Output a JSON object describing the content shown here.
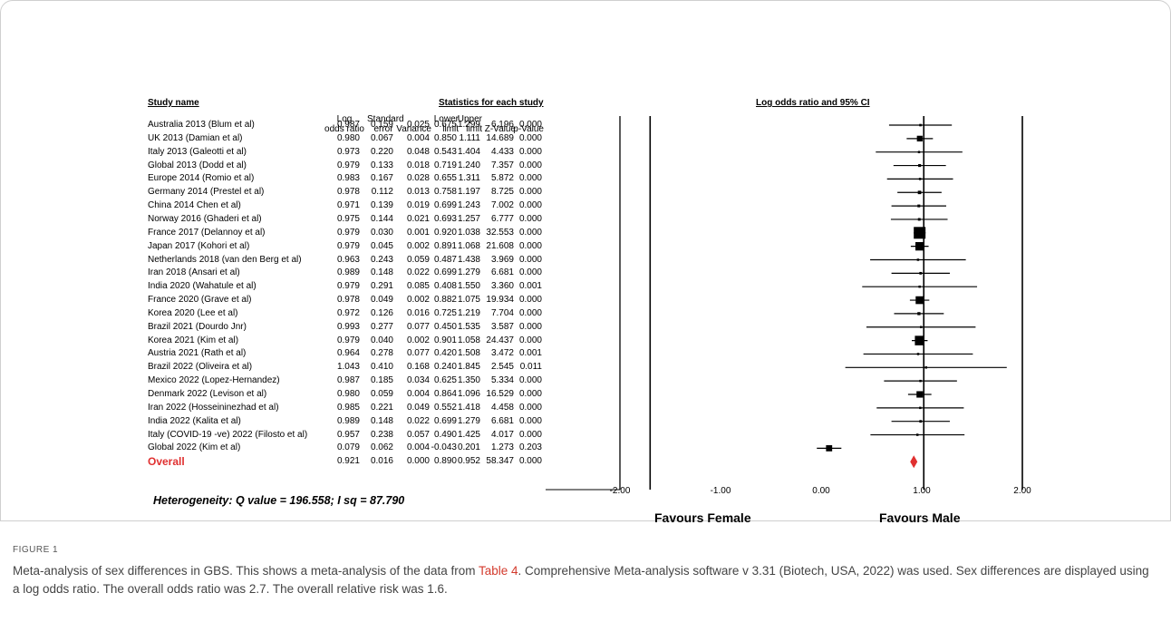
{
  "headers": {
    "study_name": "Study name",
    "statistics": "Statistics for each study",
    "plot": "Log odds ratio and 95% CI",
    "cols": [
      "Log odds ratio",
      "Standard error",
      "Variance",
      "Lower limit",
      "Upper limit",
      "Z-Value",
      "p-Value"
    ]
  },
  "chart_data": {
    "type": "forest",
    "xlabel_left": "Favours Female",
    "xlabel_right": "Favours Male",
    "xlim": [
      -2.0,
      2.0
    ],
    "ticks": [
      "-2.00",
      "-1.00",
      "0.00",
      "1.00",
      "2.00"
    ],
    "tick_values": [
      -2,
      -1,
      0,
      1,
      2
    ],
    "studies": [
      {
        "name": "Australia 2013 (Blum et al)",
        "lor": 0.987,
        "se": 0.159,
        "var": 0.025,
        "lo": 0.675,
        "hi": 1.299,
        "z": 6.196,
        "p": 0.0
      },
      {
        "name": "UK 2013 (Damian et al)",
        "lor": 0.98,
        "se": 0.067,
        "var": 0.004,
        "lo": 0.85,
        "hi": 1.111,
        "z": 14.689,
        "p": 0.0
      },
      {
        "name": "Italy 2013 (Galeotti et al)",
        "lor": 0.973,
        "se": 0.22,
        "var": 0.048,
        "lo": 0.543,
        "hi": 1.404,
        "z": 4.433,
        "p": 0.0
      },
      {
        "name": "Global 2013 (Dodd et al)",
        "lor": 0.979,
        "se": 0.133,
        "var": 0.018,
        "lo": 0.719,
        "hi": 1.24,
        "z": 7.357,
        "p": 0.0
      },
      {
        "name": "Europe 2014 (Romio et al)",
        "lor": 0.983,
        "se": 0.167,
        "var": 0.028,
        "lo": 0.655,
        "hi": 1.311,
        "z": 5.872,
        "p": 0.0
      },
      {
        "name": "Germany 2014 (Prestel et al)",
        "lor": 0.978,
        "se": 0.112,
        "var": 0.013,
        "lo": 0.758,
        "hi": 1.197,
        "z": 8.725,
        "p": 0.0
      },
      {
        "name": "China 2014 Chen et al)",
        "lor": 0.971,
        "se": 0.139,
        "var": 0.019,
        "lo": 0.699,
        "hi": 1.243,
        "z": 7.002,
        "p": 0.0
      },
      {
        "name": "Norway 2016 (Ghaderi et al)",
        "lor": 0.975,
        "se": 0.144,
        "var": 0.021,
        "lo": 0.693,
        "hi": 1.257,
        "z": 6.777,
        "p": 0.0
      },
      {
        "name": "France 2017 (Delannoy et al)",
        "lor": 0.979,
        "se": 0.03,
        "var": 0.001,
        "lo": 0.92,
        "hi": 1.038,
        "z": 32.553,
        "p": 0.0
      },
      {
        "name": "Japan 2017 (Kohori et al)",
        "lor": 0.979,
        "se": 0.045,
        "var": 0.002,
        "lo": 0.891,
        "hi": 1.068,
        "z": 21.608,
        "p": 0.0
      },
      {
        "name": "Netherlands 2018 (van den Berg et al)",
        "lor": 0.963,
        "se": 0.243,
        "var": 0.059,
        "lo": 0.487,
        "hi": 1.438,
        "z": 3.969,
        "p": 0.0
      },
      {
        "name": "Iran 2018 (Ansari et al)",
        "lor": 0.989,
        "se": 0.148,
        "var": 0.022,
        "lo": 0.699,
        "hi": 1.279,
        "z": 6.681,
        "p": 0.0
      },
      {
        "name": "India 2020 (Wahatule et al)",
        "lor": 0.979,
        "se": 0.291,
        "var": 0.085,
        "lo": 0.408,
        "hi": 1.55,
        "z": 3.36,
        "p": 0.001
      },
      {
        "name": "France 2020 (Grave et al)",
        "lor": 0.978,
        "se": 0.049,
        "var": 0.002,
        "lo": 0.882,
        "hi": 1.075,
        "z": 19.934,
        "p": 0.0
      },
      {
        "name": "Korea 2020 (Lee et al)",
        "lor": 0.972,
        "se": 0.126,
        "var": 0.016,
        "lo": 0.725,
        "hi": 1.219,
        "z": 7.704,
        "p": 0.0
      },
      {
        "name": "Brazil 2021 (Dourdo Jnr)",
        "lor": 0.993,
        "se": 0.277,
        "var": 0.077,
        "lo": 0.45,
        "hi": 1.535,
        "z": 3.587,
        "p": 0.0
      },
      {
        "name": "Korea 2021 (Kim et al)",
        "lor": 0.979,
        "se": 0.04,
        "var": 0.002,
        "lo": 0.901,
        "hi": 1.058,
        "z": 24.437,
        "p": 0.0
      },
      {
        "name": "Austria 2021 (Rath et al)",
        "lor": 0.964,
        "se": 0.278,
        "var": 0.077,
        "lo": 0.42,
        "hi": 1.508,
        "z": 3.472,
        "p": 0.001
      },
      {
        "name": "Brazil 2022 (Oliveira et al)",
        "lor": 1.043,
        "se": 0.41,
        "var": 0.168,
        "lo": 0.24,
        "hi": 1.845,
        "z": 2.545,
        "p": 0.011
      },
      {
        "name": "Mexico 2022 (Lopez-Hernandez)",
        "lor": 0.987,
        "se": 0.185,
        "var": 0.034,
        "lo": 0.625,
        "hi": 1.35,
        "z": 5.334,
        "p": 0.0
      },
      {
        "name": "Denmark 2022 (Levison et al)",
        "lor": 0.98,
        "se": 0.059,
        "var": 0.004,
        "lo": 0.864,
        "hi": 1.096,
        "z": 16.529,
        "p": 0.0
      },
      {
        "name": "Iran 2022 (Hosseininezhad et al)",
        "lor": 0.985,
        "se": 0.221,
        "var": 0.049,
        "lo": 0.552,
        "hi": 1.418,
        "z": 4.458,
        "p": 0.0
      },
      {
        "name": "India 2022 (Kalita et al)",
        "lor": 0.989,
        "se": 0.148,
        "var": 0.022,
        "lo": 0.699,
        "hi": 1.279,
        "z": 6.681,
        "p": 0.0
      },
      {
        "name": "Italy (COVID-19 -ve) 2022 (Filosto et al)",
        "lor": 0.957,
        "se": 0.238,
        "var": 0.057,
        "lo": 0.49,
        "hi": 1.425,
        "z": 4.017,
        "p": 0.0
      },
      {
        "name": "Global 2022 (Kim et al)",
        "lor": 0.079,
        "se": 0.062,
        "var": 0.004,
        "lo": -0.043,
        "hi": 0.201,
        "z": 1.273,
        "p": 0.203
      }
    ],
    "overall": {
      "name": "Overall",
      "lor": 0.921,
      "se": 0.016,
      "var": 0.0,
      "lo": 0.89,
      "hi": 0.952,
      "z": 58.347,
      "p": 0.0
    }
  },
  "colors": {
    "overall_diamond": "#e03030",
    "overall_label": "#e03030",
    "caption_link": "#d33a2c"
  },
  "heterogeneity": "Heterogeneity: Q value = 196.558; I sq = 87.790",
  "figure_label": "FIGURE 1",
  "caption": {
    "pre": "Meta-analysis of sex differences in GBS. This shows a meta-analysis of the data from ",
    "link": "Table 4",
    "post": ". Comprehensive Meta-analysis software v 3.31 (Biotech, USA, 2022) was used. Sex differences are displayed using a log odds ratio. The overall odds ratio was 2.7. The overall relative risk was 1.6."
  }
}
